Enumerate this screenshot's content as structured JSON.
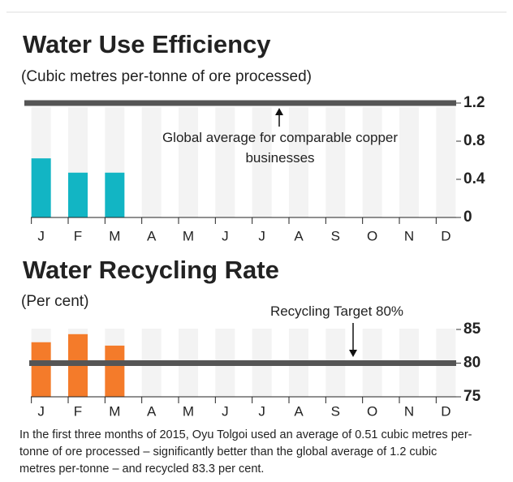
{
  "chart_data": [
    {
      "type": "bar",
      "title": "Water Use Efficiency",
      "subtitle": "(Cubic metres per-tonne of ore processed)",
      "categories": [
        "J",
        "F",
        "M",
        "A",
        "M",
        "J",
        "J",
        "A",
        "S",
        "O",
        "N",
        "D"
      ],
      "values": [
        0.62,
        0.47,
        0.47,
        null,
        null,
        null,
        null,
        null,
        null,
        null,
        null,
        null
      ],
      "color": "#12b5c4",
      "ylim": [
        0,
        1.2
      ],
      "yticks": [
        0,
        0.4,
        0.8,
        1.2
      ],
      "reference_line": {
        "value": 1.2,
        "label": "Global average for comparable copper businesses"
      }
    },
    {
      "type": "bar",
      "title": "Water Recycling Rate",
      "subtitle": "(Per cent)",
      "categories": [
        "J",
        "F",
        "M",
        "A",
        "M",
        "J",
        "J",
        "A",
        "S",
        "O",
        "N",
        "D"
      ],
      "values": [
        83.1,
        84.3,
        82.6,
        null,
        null,
        null,
        null,
        null,
        null,
        null,
        null,
        null
      ],
      "color": "#f47b2a",
      "ylim": [
        75,
        85
      ],
      "yticks": [
        75,
        80,
        85
      ],
      "reference_line": {
        "value": 80,
        "label": "Recycling Target 80%"
      }
    }
  ],
  "footnote": "In the first three months of 2015, Oyu Tolgoi used an average of 0.51 cubic metres per-tonne of ore processed – significantly better than the global average of 1.2 cubic metres per-tonne – and recycled 83.3 per cent."
}
